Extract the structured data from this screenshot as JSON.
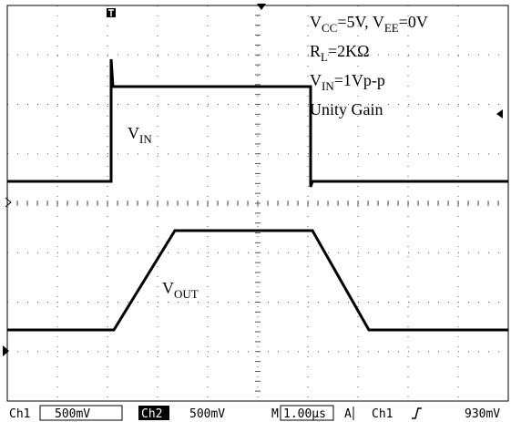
{
  "annotations": {
    "supply": [
      "V",
      "CC",
      "=5V, V",
      "EE",
      "=0V"
    ],
    "load": [
      "R",
      "L",
      "=2KΩ"
    ],
    "input": [
      "V",
      "IN",
      "=1Vp-p"
    ],
    "gain": [
      "Unity Gain"
    ],
    "vin_label": [
      "V",
      "IN"
    ],
    "vout_label": [
      "V",
      "OUT"
    ]
  },
  "status_bar": {
    "ch1": "Ch1",
    "ch1_scale": "500mV",
    "ch2": "Ch2",
    "ch2_scale": "500mV",
    "timebase_prefix": "M",
    "timebase": "1.00µs",
    "trigger_mode": "A",
    "trigger_source": "Ch1",
    "trigger_level": "930mV"
  }
}
